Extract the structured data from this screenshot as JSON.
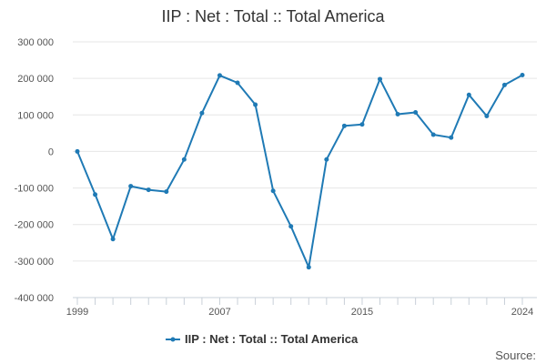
{
  "colors": {
    "series": "#1f7ab5",
    "grid": "#e6e6e6",
    "axis": "#c8d0d8",
    "text": "#333333",
    "tick_text": "#555555"
  },
  "source_label": "Source:",
  "chart_data": {
    "type": "line",
    "title": "IIP : Net : Total :: Total America",
    "xlabel": "",
    "ylabel": "",
    "x": [
      1999,
      2000,
      2001,
      2002,
      2003,
      2004,
      2005,
      2006,
      2007,
      2008,
      2009,
      2010,
      2011,
      2012,
      2013,
      2014,
      2015,
      2016,
      2017,
      2018,
      2019,
      2020,
      2021,
      2022,
      2023,
      2024
    ],
    "series": [
      {
        "name": "IIP : Net : Total :: Total America",
        "values": [
          0,
          -118000,
          -240000,
          -95000,
          -105000,
          -110000,
          -22000,
          105000,
          208000,
          188000,
          128000,
          -108000,
          -205000,
          -317000,
          -22000,
          70000,
          74000,
          198000,
          102000,
          107000,
          46000,
          38000,
          155000,
          97000,
          182000,
          209000
        ]
      }
    ],
    "xlim": [
      1999,
      2024
    ],
    "ylim": [
      -400000,
      300000
    ],
    "x_ticks": [
      1999,
      2007,
      2015,
      2024
    ],
    "y_ticks": [
      {
        "value": 300000,
        "label": "300 000"
      },
      {
        "value": 200000,
        "label": "200 000"
      },
      {
        "value": 100000,
        "label": "100 000"
      },
      {
        "value": 0,
        "label": "0"
      },
      {
        "value": -100000,
        "label": "-100 000"
      },
      {
        "value": -200000,
        "label": "-200 000"
      },
      {
        "value": -300000,
        "label": "-300 000"
      },
      {
        "value": -400000,
        "label": "-400 000"
      }
    ],
    "grid": true,
    "legend_position": "bottom-center"
  }
}
